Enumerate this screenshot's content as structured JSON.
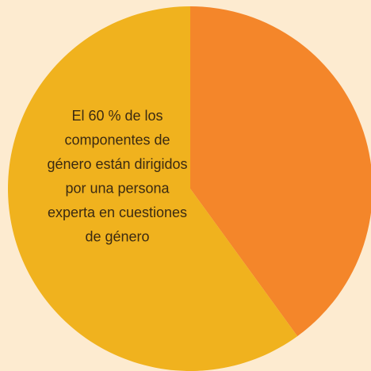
{
  "chart_data": {
    "type": "pie",
    "values": [
      40,
      60
    ],
    "colors": [
      "#f4862a",
      "#f0b21e"
    ],
    "start_angle": 0,
    "direction": "clockwise",
    "annotation": [
      "El 60 % de los",
      "componentes de",
      "género están dirigidos",
      "por una persona",
      "experta en cuestiones",
      "de género"
    ]
  }
}
